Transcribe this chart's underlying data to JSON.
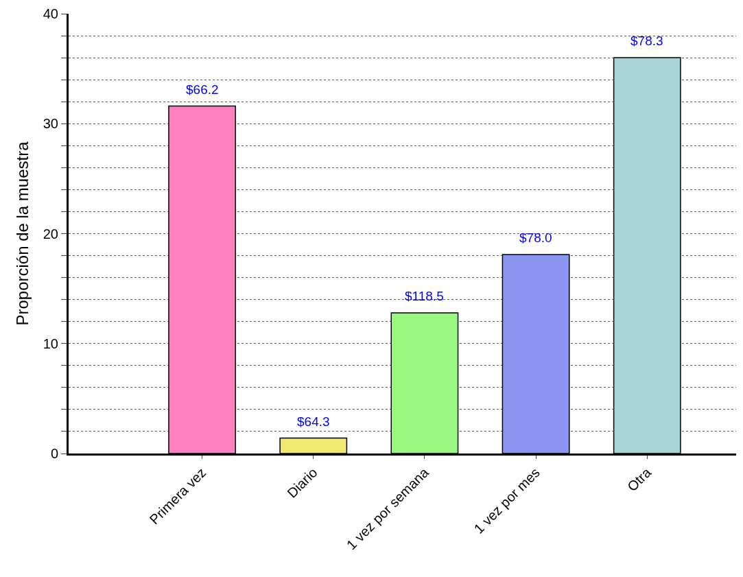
{
  "chart_data": {
    "type": "bar",
    "ylabel": "Proporción de la muestra",
    "categories": [
      "Primera vez",
      "Diario",
      "1 vez por semana",
      "1 vez por mes",
      "Otra"
    ],
    "values": [
      31.6,
      1.4,
      12.8,
      18.1,
      36.0
    ],
    "colors": [
      "#ff80c0",
      "#f0e870",
      "#98f880",
      "#8c96f0",
      "#a8d4d8"
    ],
    "annotations": [
      {
        "text": "$66.2",
        "x": "Primera vez",
        "y": 31.6
      },
      {
        "text": "$64.3",
        "x": "Diario",
        "y": 1.4
      },
      {
        "text": "$118.5",
        "x": "1 vez por semana",
        "y": 12.8
      },
      {
        "text": "$78.0",
        "x": "1 vez por mes",
        "y": 18.1
      },
      {
        "text": "$78.3",
        "x": "Otra",
        "y": 36.0
      }
    ],
    "ylim": [
      0,
      40
    ],
    "yticks": [
      0,
      {
        "value": 2,
        "label": null
      },
      {
        "value": 4,
        "label": null
      },
      {
        "value": 6,
        "label": null
      },
      {
        "value": 8,
        "label": null
      },
      10,
      {
        "value": 12,
        "label": null
      },
      {
        "value": 14,
        "label": null
      },
      {
        "value": 16,
        "label": null
      },
      {
        "value": 18,
        "label": null
      },
      20,
      {
        "value": 22,
        "label": null
      },
      {
        "value": 24,
        "label": null
      },
      {
        "value": 26,
        "label": null
      },
      {
        "value": 28,
        "label": null
      },
      30,
      {
        "value": 32,
        "label": null
      },
      {
        "value": 34,
        "label": null
      },
      {
        "value": 36,
        "label": null
      },
      {
        "value": 38,
        "label": null
      },
      40
    ],
    "grid": "y"
  }
}
